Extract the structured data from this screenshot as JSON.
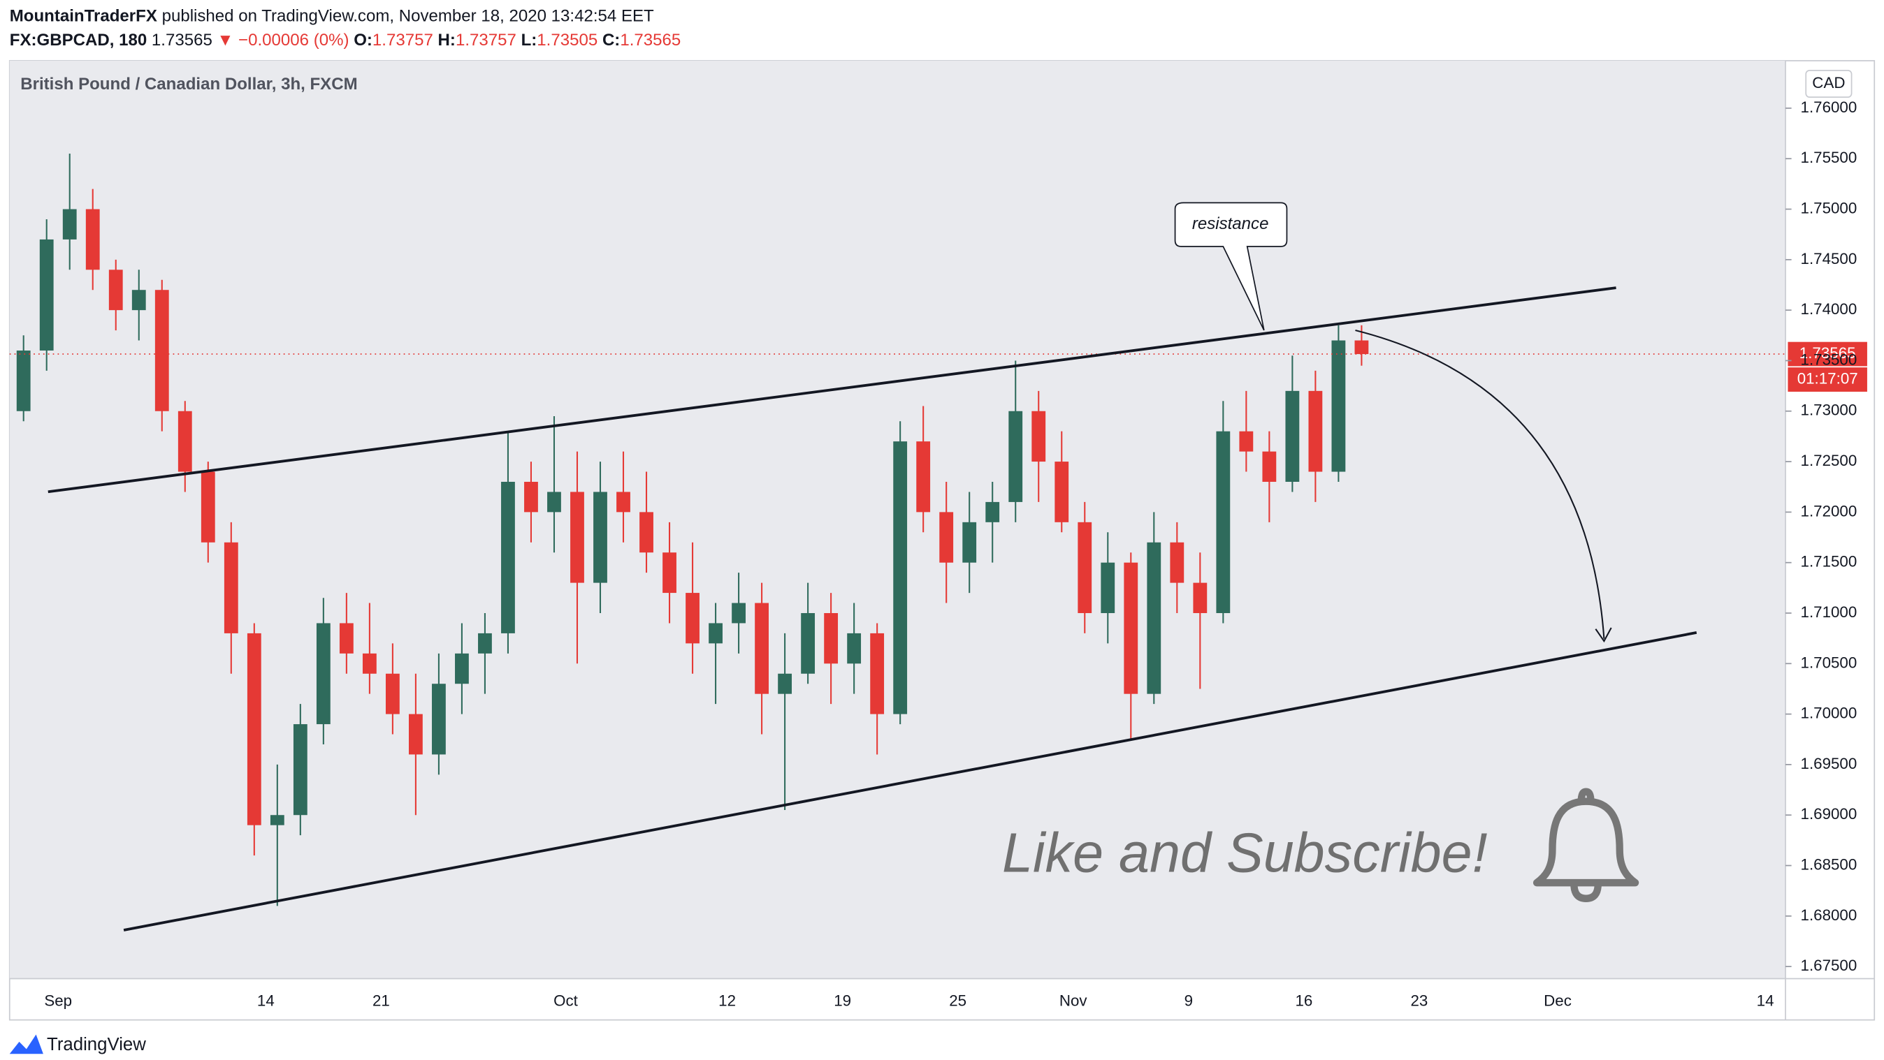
{
  "header": {
    "author": "MountainTraderFX",
    "published": "published on TradingView.com, November 18, 2020 13:42:54 EET",
    "symbol": "FX:GBPCAD, 180",
    "price": "1.73565",
    "change": "▼ −0.00006 (0%)",
    "o_label": "O:",
    "o": "1.73757",
    "h_label": "H:",
    "h": "1.73757",
    "l_label": "L:",
    "l": "1.73505",
    "c_label": "C:",
    "c": "1.73565"
  },
  "currency": "CAD",
  "countdown": "01:17:07",
  "brand": "TradingView",
  "chart_data": {
    "type": "candlestick",
    "title": "British Pound / Canadian Dollar, 3h, FXCM",
    "annotations": {
      "callout": "resistance",
      "promo": "Like and Subscribe!"
    },
    "up_color": "#2f6b5c",
    "down_color": "#e53935",
    "grid": false,
    "ylim": [
      1.6738,
      1.7647
    ],
    "yticks": [
      {
        "value": 1.76,
        "label": "1.76000"
      },
      {
        "value": 1.755,
        "label": "1.75500"
      },
      {
        "value": 1.75,
        "label": "1.75000"
      },
      {
        "value": 1.745,
        "label": "1.74500"
      },
      {
        "value": 1.74,
        "label": "1.74000"
      },
      {
        "value": 1.735,
        "label": "1.73500"
      },
      {
        "value": 1.73,
        "label": "1.73000"
      },
      {
        "value": 1.725,
        "label": "1.72500"
      },
      {
        "value": 1.72,
        "label": "1.72000"
      },
      {
        "value": 1.715,
        "label": "1.71500"
      },
      {
        "value": 1.71,
        "label": "1.71000"
      },
      {
        "value": 1.705,
        "label": "1.70500"
      },
      {
        "value": 1.7,
        "label": "1.70000"
      },
      {
        "value": 1.695,
        "label": "1.69500"
      },
      {
        "value": 1.69,
        "label": "1.69000"
      },
      {
        "value": 1.685,
        "label": "1.68500"
      },
      {
        "value": 1.68,
        "label": "1.68000"
      },
      {
        "value": 1.675,
        "label": "1.67500"
      }
    ],
    "categories": [
      null,
      null,
      "Sep",
      null,
      null,
      null,
      null,
      null,
      null,
      null,
      null,
      "14",
      null,
      null,
      null,
      null,
      "21",
      null,
      null,
      null,
      null,
      null,
      null,
      null,
      "Oct",
      null,
      null,
      null,
      null,
      null,
      null,
      "12",
      null,
      null,
      null,
      null,
      "19",
      null,
      null,
      null,
      null,
      "25",
      null,
      null,
      null,
      null,
      "Nov",
      null,
      null,
      null,
      null,
      "9",
      null,
      null,
      null,
      null,
      "16",
      null,
      null,
      null,
      null,
      "23",
      null,
      null,
      null,
      null,
      null,
      "Dec",
      null,
      null,
      null,
      null,
      null,
      null,
      null,
      null,
      "14"
    ],
    "open": [
      1.73,
      1.736,
      1.747,
      1.75,
      1.744,
      1.74,
      1.742,
      1.73,
      1.724,
      1.717,
      1.708,
      1.689,
      1.69,
      1.699,
      1.709,
      1.706,
      1.704,
      1.7,
      1.696,
      1.703,
      1.706,
      1.708,
      1.723,
      1.72,
      1.722,
      1.713,
      1.722,
      1.72,
      1.716,
      1.712,
      1.707,
      1.709,
      1.711,
      1.702,
      1.704,
      1.71,
      1.705,
      1.708,
      1.7,
      1.727,
      1.72,
      1.715,
      1.719,
      1.721,
      1.73,
      1.725,
      1.719,
      1.71,
      1.715,
      1.702,
      1.717,
      1.713,
      1.71,
      1.728,
      1.726,
      1.723,
      1.732,
      1.724,
      1.737,
      null,
      null,
      null,
      null,
      null,
      null,
      null,
      null,
      null,
      null,
      null,
      null,
      null,
      null,
      null,
      null,
      null,
      null
    ],
    "high": [
      1.7375,
      1.749,
      1.7555,
      1.752,
      1.745,
      1.744,
      1.743,
      1.731,
      1.725,
      1.719,
      1.709,
      1.695,
      1.701,
      1.7115,
      1.712,
      1.711,
      1.707,
      1.704,
      1.706,
      1.709,
      1.71,
      1.728,
      1.725,
      1.7295,
      1.726,
      1.725,
      1.726,
      1.724,
      1.719,
      1.717,
      1.711,
      1.714,
      1.713,
      1.708,
      1.713,
      1.712,
      1.711,
      1.709,
      1.729,
      1.7305,
      1.723,
      1.722,
      1.723,
      1.735,
      1.732,
      1.728,
      1.721,
      1.718,
      1.716,
      1.72,
      1.719,
      1.716,
      1.731,
      1.732,
      1.728,
      1.7355,
      1.734,
      1.7385,
      1.7385,
      null,
      null,
      null,
      null,
      null,
      null,
      null,
      null,
      null,
      null,
      null,
      null,
      null,
      null,
      null,
      null,
      null,
      null
    ],
    "low": [
      1.729,
      1.734,
      1.744,
      1.742,
      1.738,
      1.737,
      1.728,
      1.722,
      1.715,
      1.704,
      1.686,
      1.681,
      1.688,
      1.697,
      1.704,
      1.702,
      1.698,
      1.69,
      1.694,
      1.7,
      1.702,
      1.706,
      1.717,
      1.716,
      1.705,
      1.71,
      1.717,
      1.714,
      1.709,
      1.704,
      1.701,
      1.706,
      1.698,
      1.6905,
      1.703,
      1.701,
      1.702,
      1.696,
      1.699,
      1.718,
      1.711,
      1.712,
      1.715,
      1.719,
      1.721,
      1.718,
      1.708,
      1.707,
      1.6975,
      1.701,
      1.71,
      1.7025,
      1.709,
      1.724,
      1.719,
      1.722,
      1.721,
      1.723,
      1.7345,
      null,
      null,
      null,
      null,
      null,
      null,
      null,
      null,
      null,
      null,
      null,
      null,
      null,
      null,
      null,
      null,
      null,
      null
    ],
    "close": [
      1.736,
      1.747,
      1.75,
      1.744,
      1.74,
      1.742,
      1.73,
      1.724,
      1.717,
      1.708,
      1.689,
      1.69,
      1.699,
      1.709,
      1.706,
      1.704,
      1.7,
      1.696,
      1.703,
      1.706,
      1.708,
      1.723,
      1.72,
      1.722,
      1.713,
      1.722,
      1.72,
      1.716,
      1.712,
      1.707,
      1.709,
      1.711,
      1.702,
      1.704,
      1.71,
      1.705,
      1.708,
      1.7,
      1.727,
      1.72,
      1.715,
      1.719,
      1.721,
      1.73,
      1.725,
      1.719,
      1.71,
      1.715,
      1.702,
      1.717,
      1.713,
      1.71,
      1.728,
      1.726,
      1.723,
      1.732,
      1.724,
      1.737,
      1.73565,
      null,
      null,
      null,
      null,
      null,
      null,
      null,
      null,
      null,
      null,
      null,
      null,
      null,
      null,
      null,
      null,
      null,
      null
    ]
  }
}
